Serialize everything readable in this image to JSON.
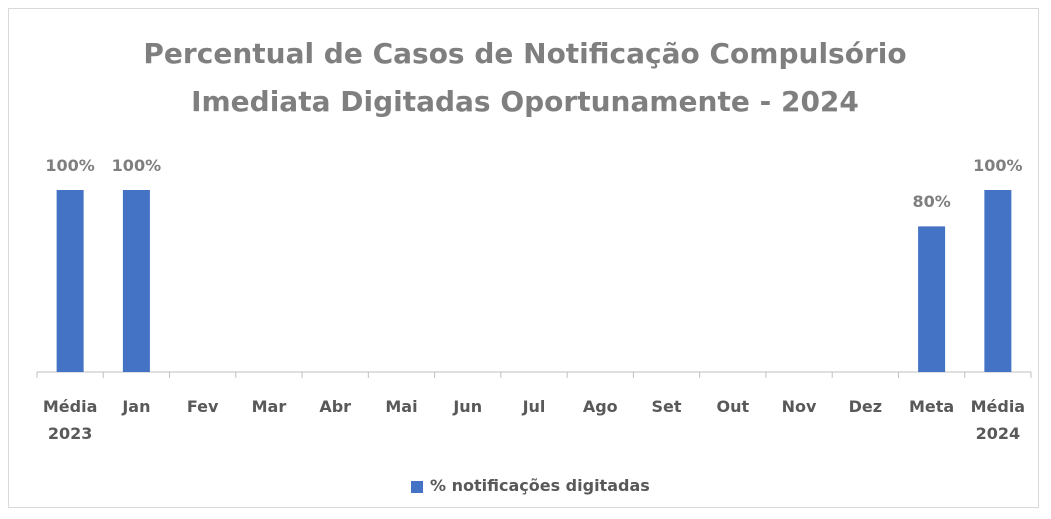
{
  "chart_data": {
    "type": "bar",
    "title": "Percentual de Casos de Notificação Compulsório Imediata Digitadas Oportunamente - 2024",
    "categories": [
      "Média 2023",
      "Jan",
      "Fev",
      "Mar",
      "Abr",
      "Mai",
      "Jun",
      "Jul",
      "Ago",
      "Set",
      "Out",
      "Nov",
      "Dez",
      "Meta",
      "Média 2024"
    ],
    "series": [
      {
        "name": "% notificações digitadas",
        "color": "#4472c4",
        "values": [
          100,
          100,
          null,
          null,
          null,
          null,
          null,
          null,
          null,
          null,
          null,
          null,
          null,
          80,
          100
        ],
        "value_labels": [
          "100%",
          "100%",
          null,
          null,
          null,
          null,
          null,
          null,
          null,
          null,
          null,
          null,
          null,
          "80%",
          "100%"
        ]
      }
    ],
    "ylim": [
      0,
      100
    ],
    "legend": "bottom"
  }
}
